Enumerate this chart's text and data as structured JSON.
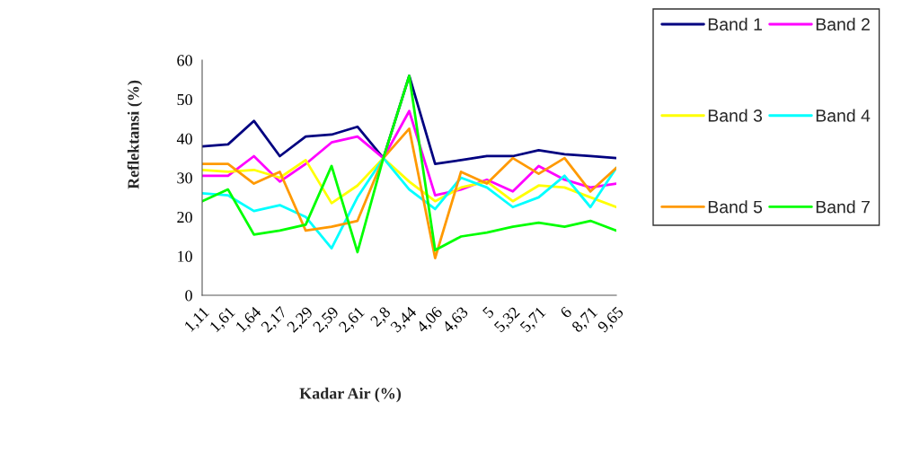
{
  "chart_data": {
    "type": "line",
    "xlabel": "Kadar Air (%)",
    "ylabel": "Reflektansi (%)",
    "categories": [
      "1,11",
      "1,61",
      "1,64",
      "2,17",
      "2,29",
      "2,59",
      "2,61",
      "2,8",
      "3,44",
      "4,06",
      "4,63",
      "5",
      "5,32",
      "5,71",
      "6",
      "8,71",
      "9,65"
    ],
    "ylim": [
      0,
      60
    ],
    "yticks": [
      0,
      10,
      20,
      30,
      40,
      50,
      60
    ],
    "grid": false,
    "legend": "right",
    "marker": "none",
    "line_style": "solid",
    "series": [
      {
        "name": "Band 1",
        "color": "#000080",
        "values": [
          38,
          38.5,
          44.5,
          35.5,
          40.5,
          41,
          43,
          35,
          56,
          33.5,
          34.5,
          35.5,
          35.5,
          37,
          36,
          35.5,
          35
        ]
      },
      {
        "name": "Band 2",
        "color": "#ff00ff",
        "values": [
          30.5,
          30.5,
          35.5,
          29,
          33.5,
          39,
          40.5,
          35,
          47,
          25.5,
          27,
          29.5,
          26.5,
          33,
          29.5,
          27.5,
          28.5
        ]
      },
      {
        "name": "Band 3",
        "color": "#ffff00",
        "values": [
          32,
          31.5,
          32,
          30,
          34.5,
          23.5,
          28,
          35,
          29,
          24,
          27.5,
          29,
          24,
          28,
          27.5,
          25,
          22.5
        ]
      },
      {
        "name": "Band 4",
        "color": "#00ffff",
        "values": [
          26,
          25.5,
          21.5,
          23,
          20,
          12,
          25,
          35,
          27,
          22,
          30,
          27.5,
          22.5,
          25,
          30.5,
          22.5,
          32.5
        ]
      },
      {
        "name": "Band 5",
        "color": "#ff9900",
        "values": [
          33.5,
          33.5,
          28.5,
          31.5,
          16.5,
          17.5,
          19,
          35,
          42.5,
          9.5,
          31.5,
          28.5,
          35,
          31,
          35,
          26.5,
          32.5
        ]
      },
      {
        "name": "Band 7",
        "color": "#00ff00",
        "values": [
          24,
          27,
          15.5,
          16.5,
          18,
          33,
          11,
          35,
          56,
          11.5,
          15,
          16,
          17.5,
          18.5,
          17.5,
          19,
          16.5
        ]
      }
    ]
  }
}
